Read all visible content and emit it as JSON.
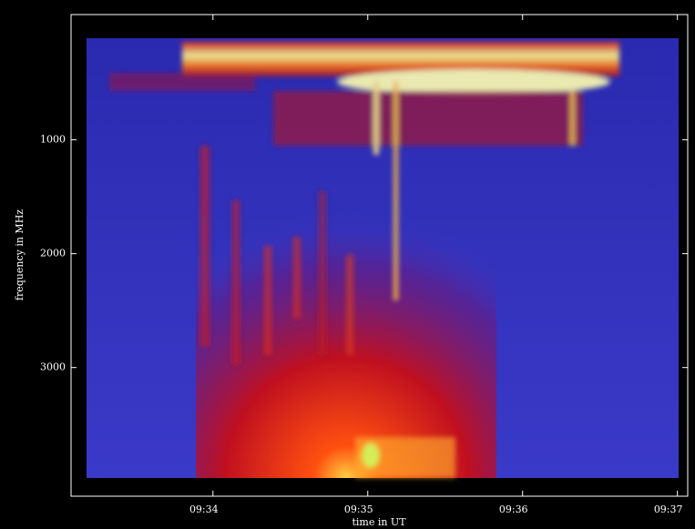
{
  "chart_data": {
    "type": "spectrogram",
    "x_label": "time in UT",
    "y_label": "frequency in MHz",
    "xlim": [
      "09:33:05",
      "09:37:04"
    ],
    "xticks": [
      "09:34",
      "09:35",
      "09:36",
      "09:37"
    ],
    "ylim": [
      -100,
      4130
    ],
    "yticks": [
      1000,
      2000,
      3000
    ],
    "y_inverted": true
  }
}
